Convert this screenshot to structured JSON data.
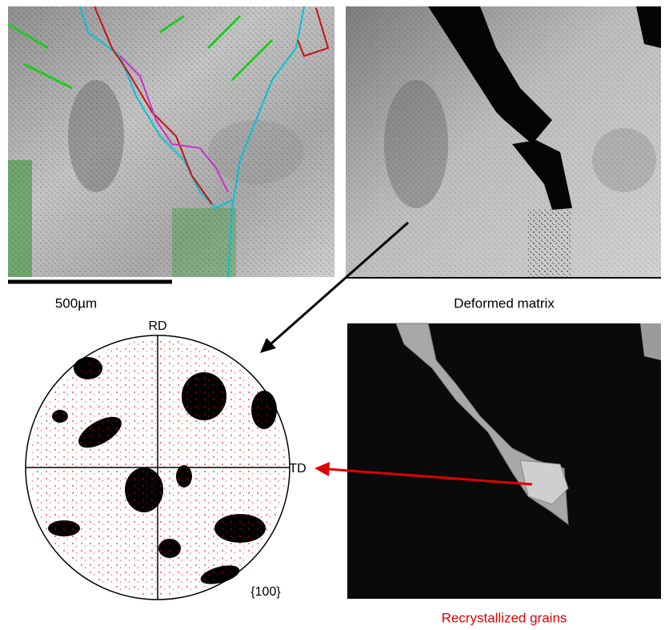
{
  "scale_bar": {
    "label": "500µm"
  },
  "panels": {
    "deformed": {
      "caption": "Deformed matrix"
    },
    "pole_figure": {
      "rd": "RD",
      "td": "TD",
      "plane": "{100}"
    },
    "recrystallized": {
      "caption": "Recrystallized grains"
    }
  }
}
